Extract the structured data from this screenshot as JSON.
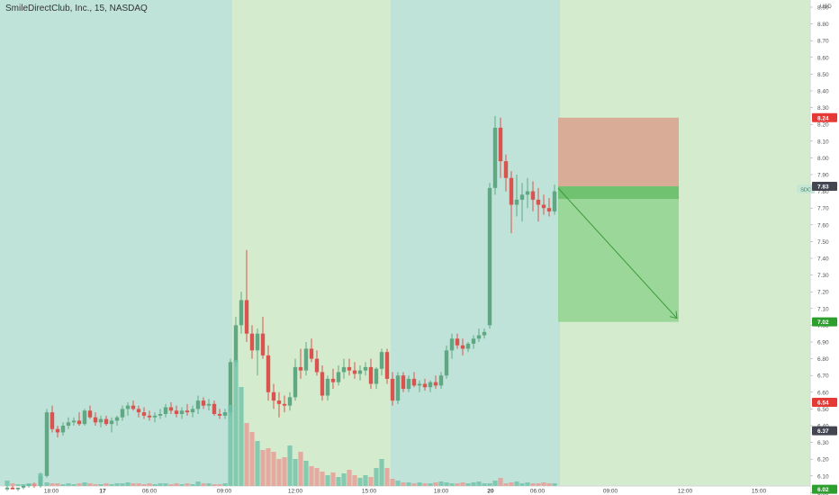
{
  "header": {
    "title": "SmileDirectClub, Inc., 15, NASDAQ",
    "currency": "USD"
  },
  "chart": {
    "symbol_tag": "SDC",
    "price_axis_ticks": [
      "8.90",
      "8.80",
      "8.70",
      "8.60",
      "8.50",
      "8.40",
      "8.30",
      "8.20",
      "8.10",
      "8.00",
      "7.90",
      "7.80",
      "7.70",
      "7.60",
      "7.50",
      "7.40",
      "7.30",
      "7.20",
      "7.10",
      "7.00",
      "6.90",
      "6.80",
      "6.70",
      "6.60",
      "6.50",
      "6.40",
      "6.30",
      "6.20",
      "6.10",
      "6.00"
    ],
    "time_axis_labels": [
      "18:00",
      "17",
      "06:00",
      "09:00",
      "12:00",
      "15:00",
      "18:00",
      "20",
      "06:00",
      "09:00",
      "12:00",
      "15:00"
    ],
    "price_badges": [
      {
        "label": "8.24",
        "color": "#e53935"
      },
      {
        "label": "7.83",
        "color": "#434651"
      },
      {
        "label": "7.02",
        "color": "#2e9e2e"
      },
      {
        "label": "6.54",
        "color": "#e53935"
      },
      {
        "label": "6.37",
        "color": "#434651"
      },
      {
        "label": "6.02",
        "color": "#2e9e2e"
      }
    ],
    "colors": {
      "session_teal": "#bfe3d8",
      "session_green": "#d4eccd",
      "up_candle": "#5fa883",
      "down_candle": "#d9534f",
      "up_volume": "#6fc2aa",
      "down_volume": "#e79a95",
      "stop_zone": "#d9a995",
      "target_zone": "#8fd48f",
      "entry_band": "#6cc06c",
      "arrow": "#3a9a3a"
    },
    "candles_visible": true,
    "position_tool": {
      "direction": "short",
      "stop_price": 8.24,
      "entry_price": 7.83,
      "target_price": 7.02
    }
  }
}
